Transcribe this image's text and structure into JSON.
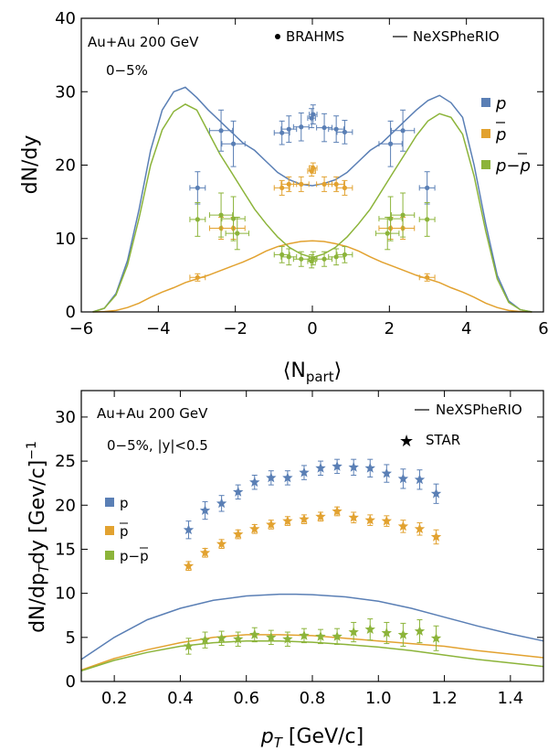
{
  "colors": {
    "proton": "#5a7fb5",
    "antiproton": "#e2a230",
    "net": "#8cb43a",
    "axis": "#000000"
  },
  "legend_labels": {
    "p": "p",
    "pbar": "p",
    "net": "p−p"
  },
  "chart_data": [
    {
      "type": "line",
      "annotations": [
        "Au+Au 200 GeV",
        "0−5%"
      ],
      "legend": {
        "markers_label": "BRAHMS",
        "lines_label": "NeXSPheRIO",
        "placement": "right"
      },
      "xlabel": "⟨N",
      "xlabel_sub": "part",
      "xlabel_close": "⟩",
      "ylabel": "dN/dy",
      "xlim": [
        -6,
        6
      ],
      "ylim": [
        0,
        40
      ],
      "xticks": [
        -6,
        -4,
        -2,
        0,
        2,
        4,
        6
      ],
      "yticks": [
        0,
        10,
        20,
        30,
        40
      ],
      "curves": [
        {
          "name": "p",
          "x": [
            -5.7,
            -5.4,
            -5.1,
            -4.8,
            -4.5,
            -4.2,
            -3.9,
            -3.6,
            -3.3,
            -3.0,
            -2.7,
            -2.4,
            -2.1,
            -1.8,
            -1.5,
            -1.2,
            -0.9,
            -0.6,
            -0.3,
            0,
            0.3,
            0.6,
            0.9,
            1.2,
            1.5,
            1.8,
            2.1,
            2.4,
            2.7,
            3.0,
            3.3,
            3.6,
            3.9,
            4.2,
            4.5,
            4.8,
            5.1,
            5.4,
            5.7
          ],
          "y": [
            0,
            0.5,
            2.5,
            7,
            14,
            22,
            27.5,
            30,
            30.6,
            29.2,
            27.5,
            26,
            24.5,
            23,
            22,
            20.5,
            19,
            18,
            17.4,
            17.2,
            17.5,
            18,
            19,
            20.5,
            22,
            23,
            24.5,
            26,
            27.5,
            28.8,
            29.5,
            28.5,
            26.5,
            20,
            12,
            5,
            1.5,
            0.3,
            0
          ]
        },
        {
          "name": "pbar",
          "x": [
            -5.7,
            -5.4,
            -5.1,
            -4.8,
            -4.5,
            -4.2,
            -3.9,
            -3.6,
            -3.3,
            -3.0,
            -2.7,
            -2.4,
            -2.1,
            -1.8,
            -1.5,
            -1.2,
            -0.9,
            -0.6,
            -0.3,
            0,
            0.3,
            0.6,
            0.9,
            1.2,
            1.5,
            1.8,
            2.1,
            2.4,
            2.7,
            3.0,
            3.3,
            3.6,
            3.9,
            4.2,
            4.5,
            4.8,
            5.1,
            5.4,
            5.7
          ],
          "y": [
            0,
            0.05,
            0.2,
            0.6,
            1.2,
            2,
            2.7,
            3.3,
            4,
            4.5,
            5,
            5.6,
            6.2,
            6.8,
            7.5,
            8.3,
            8.9,
            9.3,
            9.6,
            9.7,
            9.6,
            9.3,
            8.9,
            8.3,
            7.5,
            6.8,
            6.2,
            5.6,
            5,
            4.5,
            4,
            3.3,
            2.7,
            2,
            1.2,
            0.6,
            0.2,
            0.05,
            0
          ]
        },
        {
          "name": "net",
          "x": [
            -5.7,
            -5.4,
            -5.1,
            -4.8,
            -4.5,
            -4.2,
            -3.9,
            -3.6,
            -3.3,
            -3.0,
            -2.7,
            -2.4,
            -2.1,
            -1.8,
            -1.5,
            -1.2,
            -0.9,
            -0.6,
            -0.3,
            0,
            0.3,
            0.6,
            0.9,
            1.2,
            1.5,
            1.8,
            2.1,
            2.4,
            2.7,
            3.0,
            3.3,
            3.6,
            3.9,
            4.2,
            4.5,
            4.8,
            5.1,
            5.4,
            5.7
          ],
          "y": [
            0,
            0.5,
            2.3,
            6.4,
            12.8,
            20,
            24.8,
            27.3,
            28.3,
            27.5,
            24.5,
            21.5,
            19,
            16.5,
            14,
            12,
            10.2,
            8.8,
            7.9,
            7.4,
            7.9,
            8.8,
            10.2,
            12,
            14,
            16.5,
            19,
            21.5,
            24,
            26,
            27,
            26.5,
            24.2,
            18.5,
            11,
            4.5,
            1.3,
            0.3,
            0
          ]
        }
      ],
      "points": [
        {
          "name": "p",
          "x": [
            -2.98,
            -2.37,
            -2.05,
            -0.79,
            -0.61,
            -0.29,
            -0.02,
            0.02,
            0.31,
            0.62,
            0.84,
            2.03,
            2.35,
            2.98
          ],
          "y": [
            16.9,
            24.7,
            22.9,
            24.4,
            24.9,
            25.2,
            26.4,
            26.9,
            25.1,
            24.9,
            24.5,
            22.9,
            24.7,
            16.9
          ],
          "yerr": [
            2.2,
            2.8,
            3.1,
            1.6,
            1.8,
            1.9,
            1.3,
            1.3,
            1.9,
            1.8,
            1.6,
            3.1,
            2.8,
            2.2
          ],
          "xerr": [
            0.2,
            0.3,
            0.3,
            0.2,
            0.2,
            0.2,
            0.1,
            0.1,
            0.2,
            0.2,
            0.2,
            0.3,
            0.3,
            0.2
          ]
        },
        {
          "name": "pbar",
          "x": [
            -2.98,
            -2.37,
            -2.05,
            -0.79,
            -0.61,
            -0.29,
            -0.02,
            0.02,
            0.31,
            0.62,
            0.84,
            2.03,
            2.35,
            2.98
          ],
          "y": [
            4.7,
            11.4,
            11.4,
            16.9,
            17.4,
            17.4,
            19.2,
            19.6,
            17.4,
            17.4,
            16.9,
            11.4,
            11.4,
            4.7
          ],
          "yerr": [
            0.5,
            1.5,
            1.5,
            1.0,
            1.0,
            1.0,
            0.7,
            0.7,
            1.0,
            1.0,
            1.0,
            1.5,
            1.5,
            0.5
          ],
          "xerr": [
            0.2,
            0.3,
            0.3,
            0.2,
            0.2,
            0.2,
            0.1,
            0.1,
            0.2,
            0.2,
            0.2,
            0.3,
            0.3,
            0.2
          ]
        },
        {
          "name": "net",
          "x": [
            -2.98,
            -2.37,
            -2.05,
            -1.95,
            -0.79,
            -0.61,
            -0.29,
            -0.02,
            0.02,
            0.31,
            0.62,
            0.84,
            1.95,
            2.03,
            2.35,
            2.98
          ],
          "y": [
            12.6,
            13.2,
            12.7,
            10.7,
            7.8,
            7.5,
            7.2,
            6.9,
            7.3,
            7.2,
            7.5,
            7.8,
            10.7,
            12.7,
            13.2,
            12.6
          ],
          "yerr": [
            2.3,
            3.0,
            3.0,
            2.2,
            1.1,
            1.1,
            1.0,
            0.9,
            0.9,
            1.0,
            1.1,
            1.1,
            2.2,
            3.0,
            3.0,
            2.3
          ],
          "xerr": [
            0.2,
            0.3,
            0.3,
            0.3,
            0.2,
            0.2,
            0.2,
            0.1,
            0.1,
            0.2,
            0.2,
            0.2,
            0.3,
            0.3,
            0.3,
            0.2
          ]
        }
      ]
    },
    {
      "type": "line",
      "annotations": [
        "Au+Au 200 GeV",
        "0−5%,   |y|<0.5"
      ],
      "legend": {
        "lines_label": "NeXSPheRIO",
        "markers_label": "STAR",
        "placement": "top-right"
      },
      "xlabel": "p",
      "xlabel_sub": "T",
      "xlabel_unit": "[GeV/c]",
      "ylabel": "dN/dp",
      "ylabel_sub": "T",
      "ylabel_rest": "dy  [Gev/c]",
      "ylabel_sup": "−1",
      "xlim": [
        0.1,
        1.5
      ],
      "ylim": [
        0,
        33
      ],
      "xticks": [
        0.2,
        0.4,
        0.6,
        0.8,
        1.0,
        1.2,
        1.4
      ],
      "xtick_labels": [
        "0.2",
        "0.4",
        "0.6",
        "0.8",
        "1.0",
        "1.2",
        "1.4"
      ],
      "yticks": [
        0,
        5,
        10,
        15,
        20,
        25,
        30
      ],
      "curves": [
        {
          "name": "p",
          "x": [
            0.1,
            0.2,
            0.3,
            0.4,
            0.5,
            0.6,
            0.7,
            0.75,
            0.8,
            0.9,
            1.0,
            1.1,
            1.2,
            1.3,
            1.4,
            1.5
          ],
          "y": [
            2.5,
            5.0,
            7.0,
            8.3,
            9.2,
            9.7,
            9.9,
            9.9,
            9.85,
            9.6,
            9.1,
            8.3,
            7.3,
            6.3,
            5.4,
            4.6
          ]
        },
        {
          "name": "pbar",
          "x": [
            0.1,
            0.2,
            0.3,
            0.4,
            0.5,
            0.6,
            0.7,
            0.8,
            0.9,
            1.0,
            1.1,
            1.2,
            1.3,
            1.4,
            1.5
          ],
          "y": [
            1.3,
            2.6,
            3.6,
            4.4,
            5.0,
            5.3,
            5.3,
            5.2,
            4.9,
            4.6,
            4.3,
            4.0,
            3.5,
            3.1,
            2.7
          ]
        },
        {
          "name": "net",
          "x": [
            0.1,
            0.2,
            0.3,
            0.4,
            0.5,
            0.6,
            0.7,
            0.8,
            0.9,
            1.0,
            1.1,
            1.2,
            1.3,
            1.4,
            1.5
          ],
          "y": [
            1.2,
            2.4,
            3.3,
            4.0,
            4.4,
            4.6,
            4.6,
            4.45,
            4.2,
            3.9,
            3.5,
            3.0,
            2.5,
            2.1,
            1.7
          ]
        }
      ],
      "points": [
        {
          "name": "p",
          "x": [
            0.425,
            0.475,
            0.525,
            0.575,
            0.625,
            0.675,
            0.725,
            0.775,
            0.825,
            0.875,
            0.925,
            0.975,
            1.025,
            1.075,
            1.125,
            1.175
          ],
          "y": [
            17.2,
            19.4,
            20.2,
            21.5,
            22.6,
            23.1,
            23.1,
            23.7,
            24.2,
            24.4,
            24.3,
            24.2,
            23.6,
            23.0,
            22.9,
            21.3
          ],
          "yerr": [
            1.0,
            1.0,
            0.9,
            0.8,
            0.8,
            0.8,
            0.8,
            0.8,
            0.8,
            0.8,
            0.9,
            1.0,
            1.0,
            1.1,
            1.1,
            1.1
          ]
        },
        {
          "name": "pbar",
          "x": [
            0.425,
            0.475,
            0.525,
            0.575,
            0.625,
            0.675,
            0.725,
            0.775,
            0.825,
            0.875,
            0.925,
            0.975,
            1.025,
            1.075,
            1.125,
            1.175
          ],
          "y": [
            13.1,
            14.6,
            15.6,
            16.7,
            17.3,
            17.8,
            18.2,
            18.4,
            18.7,
            19.3,
            18.6,
            18.3,
            18.2,
            17.6,
            17.3,
            16.4
          ],
          "yerr": [
            0.5,
            0.5,
            0.5,
            0.5,
            0.5,
            0.5,
            0.5,
            0.5,
            0.5,
            0.5,
            0.6,
            0.6,
            0.6,
            0.7,
            0.7,
            0.8
          ]
        },
        {
          "name": "net",
          "x": [
            0.425,
            0.475,
            0.525,
            0.575,
            0.625,
            0.675,
            0.725,
            0.775,
            0.825,
            0.875,
            0.925,
            0.975,
            1.025,
            1.075,
            1.125,
            1.175
          ],
          "y": [
            4.0,
            4.7,
            4.9,
            4.8,
            5.3,
            5.0,
            4.8,
            5.2,
            5.1,
            5.1,
            5.6,
            5.9,
            5.5,
            5.3,
            5.7,
            4.9
          ],
          "yerr": [
            0.9,
            0.9,
            0.8,
            0.8,
            0.8,
            0.8,
            0.8,
            0.8,
            0.8,
            0.9,
            1.1,
            1.2,
            1.2,
            1.3,
            1.3,
            1.4
          ]
        }
      ]
    }
  ]
}
